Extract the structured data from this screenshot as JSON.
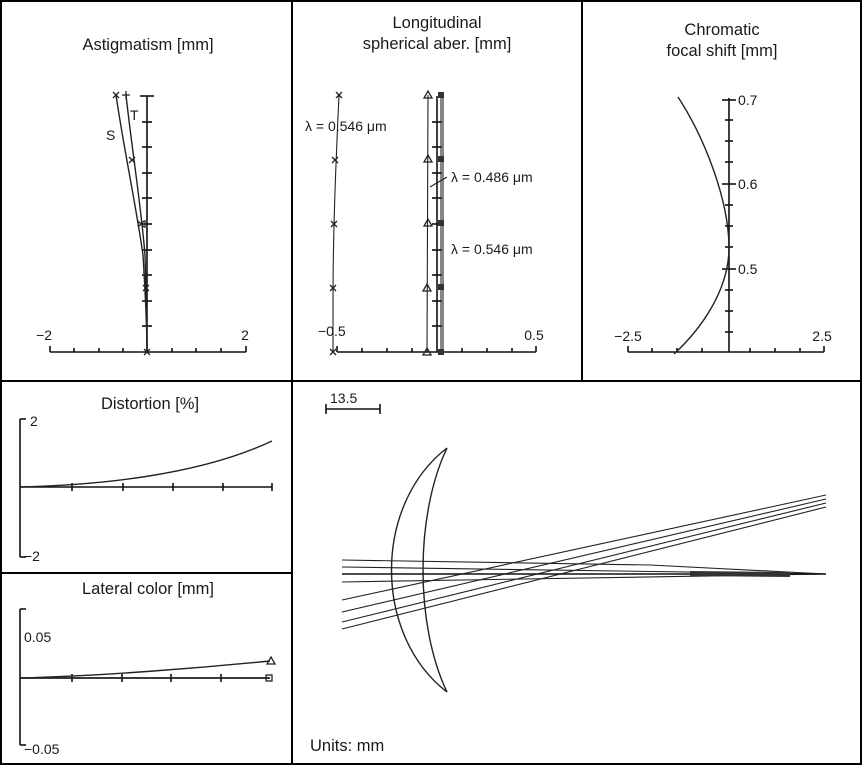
{
  "panels": {
    "astigmatism": {
      "title": "Astigmatism [mm]",
      "x_ticks": [
        "−2",
        "2"
      ],
      "label_s": "S",
      "label_t": "T"
    },
    "longitudinal": {
      "title_line1": "Longitudinal",
      "title_line2": "spherical aber. [mm]",
      "x_ticks": [
        "−0.5",
        "0.5"
      ],
      "wavelength_labels": [
        "λ = 0.546 μm",
        "λ = 0.486 μm",
        "λ = 0.546 μm"
      ]
    },
    "chromatic": {
      "title_line1": "Chromatic",
      "title_line2": "focal shift [mm]",
      "x_ticks": [
        "−2.5",
        "2.5"
      ],
      "y_ticks": [
        "0.7",
        "0.6",
        "0.5"
      ]
    },
    "distortion": {
      "title": "Distortion [%]",
      "y_ticks": [
        "2",
        "−2"
      ]
    },
    "lateral_color": {
      "title": "Lateral color [mm]",
      "y_ticks": [
        "0.05",
        "−0.05"
      ]
    },
    "layout": {
      "scale_bar_label": "13.5",
      "units_label": "Units: mm"
    }
  }
}
